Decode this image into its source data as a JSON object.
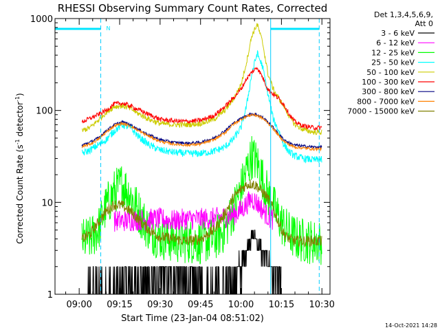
{
  "chart_data": {
    "type": "line",
    "title": "RHESSI Observing Summary Count Rates, Corrected",
    "xlabel": "Start Time (23-Jan-04 08:51:02)",
    "ylabel_main": "Corrected Count Rate (s",
    "ylabel_sup1": "-1",
    "ylabel_mid": " detector",
    "ylabel_sup2": "-1",
    "ylabel_end": ")",
    "y_scale": "log",
    "ylim": [
      1,
      1000
    ],
    "y_ticks": [
      "1000",
      "100",
      "10",
      "1"
    ],
    "xlim": [
      "08:51:02",
      "10:33:00"
    ],
    "x_ticks": [
      "09:00",
      "09:15",
      "09:30",
      "09:45",
      "10:00",
      "10:15",
      "10:30"
    ],
    "x_tick_minutes": [
      540,
      555,
      570,
      585,
      600,
      615,
      630
    ],
    "legend_header": [
      "Det 1,3,4,5,6,9,",
      "Att 0"
    ],
    "flag_label": "N",
    "footer": "14-Oct-2021 14:28",
    "night_intervals": [
      [
        "08:51:02",
        "09:08:00"
      ],
      [
        "10:11:00",
        "10:29:00"
      ]
    ],
    "series": [
      {
        "name": "3 - 6 keV",
        "color": "#000000",
        "x": [
          543,
          546,
          550,
          555,
          560,
          565,
          570,
          575,
          580,
          585,
          590,
          595,
          598,
          601,
          603,
          605,
          607,
          610,
          615
        ],
        "y": [
          1,
          1,
          1,
          1.1,
          1.3,
          1.4,
          1.5,
          1.6,
          1.3,
          1.2,
          1.1,
          1.2,
          1.6,
          2.5,
          3.8,
          4.5,
          3.2,
          2.2,
          1.2
        ]
      },
      {
        "name": "6 - 12 keV",
        "color": "#ff00ff",
        "x": [
          553,
          555,
          558,
          560,
          565,
          570,
          575,
          580,
          585,
          590,
          595,
          598,
          600,
          602,
          604,
          606,
          608,
          610,
          612
        ],
        "y": [
          6.3,
          6.3,
          6.3,
          6.4,
          6.5,
          6.6,
          6.3,
          6.6,
          6.6,
          6.7,
          7,
          7.5,
          8.2,
          9.5,
          11,
          9.8,
          8.3,
          7,
          6.5
        ]
      },
      {
        "name": "12 - 25 keV",
        "color": "#00ff00",
        "x": [
          541,
          544,
          547,
          550,
          553,
          556,
          559,
          562,
          565,
          568,
          572,
          576,
          580,
          585,
          590,
          594,
          597,
          600,
          602,
          604,
          606,
          608,
          610,
          612,
          615,
          618,
          621,
          624,
          627,
          630
        ],
        "y": [
          3.8,
          4,
          5,
          9,
          13,
          16,
          12,
          8,
          5.5,
          4.5,
          4,
          3.8,
          3.8,
          3.7,
          4,
          5,
          8,
          14,
          22,
          32,
          27,
          18,
          12,
          9,
          6,
          4.5,
          4,
          3.8,
          3.7,
          3.7
        ]
      },
      {
        "name": "25 - 50 keV",
        "color": "#00ffff",
        "x": [
          541,
          544,
          547,
          550,
          553,
          556,
          559,
          562,
          566,
          570,
          575,
          580,
          585,
          590,
          594,
          597,
          600,
          602,
          604,
          606,
          608,
          610,
          612,
          614,
          616,
          618,
          620,
          623,
          627,
          630
        ],
        "y": [
          34,
          37,
          42,
          48,
          60,
          70,
          65,
          52,
          42,
          37,
          35,
          34,
          34,
          36,
          40,
          48,
          65,
          110,
          250,
          420,
          300,
          150,
          80,
          60,
          42,
          35,
          32,
          30,
          29,
          29
        ]
      },
      {
        "name": "50 - 100 keV",
        "color": "#cccc00",
        "x": [
          541,
          544,
          547,
          550,
          553,
          556,
          559,
          562,
          566,
          570,
          575,
          580,
          585,
          590,
          594,
          597,
          600,
          602,
          604,
          606,
          608,
          610,
          612,
          614,
          616,
          618,
          620,
          623,
          627,
          630
        ],
        "y": [
          60,
          65,
          78,
          95,
          110,
          112,
          105,
          92,
          80,
          72,
          70,
          70,
          72,
          80,
          100,
          130,
          190,
          330,
          650,
          870,
          550,
          250,
          170,
          135,
          110,
          85,
          70,
          62,
          58,
          58
        ]
      },
      {
        "name": "100 - 300 keV",
        "color": "#ff0000",
        "x": [
          541,
          544,
          547,
          550,
          553,
          556,
          559,
          562,
          566,
          570,
          575,
          580,
          585,
          590,
          594,
          597,
          600,
          602,
          604,
          606,
          608,
          610,
          612,
          614,
          616,
          618,
          620,
          623,
          627,
          630
        ],
        "y": [
          75,
          82,
          90,
          100,
          118,
          120,
          112,
          102,
          90,
          80,
          77,
          76,
          78,
          88,
          110,
          135,
          170,
          220,
          260,
          295,
          230,
          170,
          150,
          135,
          115,
          90,
          75,
          68,
          65,
          65
        ]
      },
      {
        "name": "300 - 800 keV",
        "color": "#000080",
        "x": [
          541,
          544,
          547,
          550,
          553,
          556,
          559,
          562,
          566,
          570,
          575,
          580,
          585,
          590,
          594,
          597,
          600,
          602,
          604,
          606,
          608,
          610,
          612,
          614,
          616,
          618,
          620,
          623,
          627,
          630
        ],
        "y": [
          42,
          45,
          50,
          60,
          70,
          75,
          70,
          62,
          54,
          48,
          45,
          44,
          45,
          50,
          60,
          72,
          82,
          88,
          92,
          90,
          84,
          75,
          65,
          55,
          48,
          44,
          42,
          41,
          40,
          40
        ]
      },
      {
        "name": "800 - 7000 keV",
        "color": "#ff8000",
        "x": [
          541,
          544,
          547,
          550,
          553,
          556,
          559,
          562,
          566,
          570,
          575,
          580,
          585,
          590,
          594,
          597,
          600,
          602,
          604,
          606,
          608,
          610,
          612,
          614,
          616,
          618,
          620,
          623,
          627,
          630
        ],
        "y": [
          40,
          43,
          48,
          58,
          68,
          72,
          68,
          60,
          52,
          46,
          43,
          42,
          43,
          48,
          57,
          70,
          80,
          86,
          90,
          88,
          82,
          73,
          63,
          53,
          46,
          42,
          40,
          39,
          38,
          38
        ]
      },
      {
        "name": "7000 - 15000 keV",
        "color": "#808000",
        "x": [
          541,
          544,
          547,
          550,
          553,
          556,
          559,
          562,
          566,
          570,
          575,
          580,
          585,
          590,
          594,
          597,
          600,
          602,
          604,
          606,
          608,
          610,
          612,
          614,
          616,
          618,
          620,
          623,
          627,
          630
        ],
        "y": [
          4,
          4.5,
          6,
          8,
          9.5,
          9.2,
          8,
          6.5,
          5,
          4.2,
          4,
          3.8,
          4,
          5,
          7.5,
          11,
          14,
          15.5,
          16,
          15,
          13,
          11,
          8.5,
          6,
          4.5,
          4,
          3.8,
          3.8,
          3.8,
          3.8
        ]
      }
    ]
  }
}
